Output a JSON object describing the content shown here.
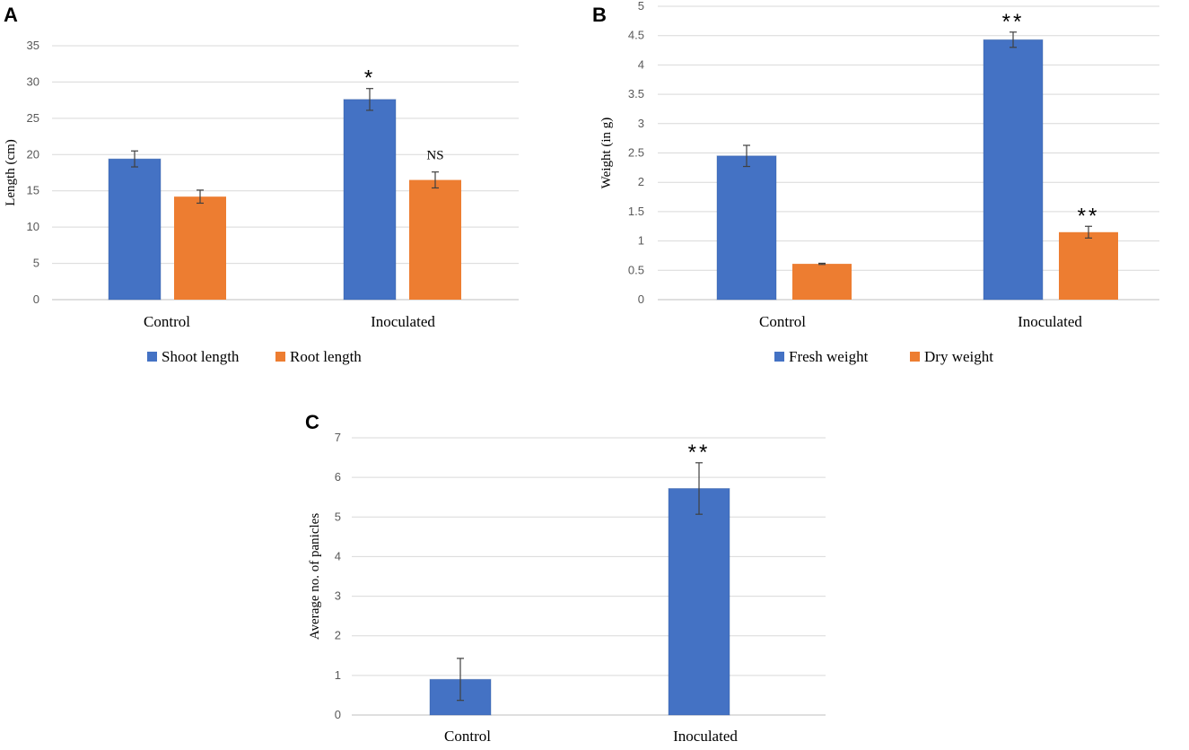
{
  "chart_data": [
    {
      "panel": "A",
      "type": "bar",
      "categories": [
        "Control",
        "Inoculated"
      ],
      "series": [
        {
          "name": "Shoot length",
          "color": "#4472C4",
          "values": [
            19.4,
            27.6
          ],
          "errors": [
            1.1,
            1.5
          ]
        },
        {
          "name": "Root length",
          "color": "#ED7D31",
          "values": [
            14.2,
            16.5
          ],
          "errors": [
            0.9,
            1.1
          ]
        }
      ],
      "annotations": [
        {
          "category": 1,
          "series": 0,
          "text": "*"
        },
        {
          "category": 1,
          "series": 1,
          "text": "NS"
        }
      ],
      "xlabel": "",
      "ylabel": "Length (cm)",
      "ylim": [
        0,
        35
      ],
      "yticks": [
        "0",
        "5",
        "10",
        "15",
        "20",
        "25",
        "30",
        "35"
      ],
      "grid": true,
      "legend": "bottom"
    },
    {
      "panel": "B",
      "type": "bar",
      "categories": [
        "Control",
        "Inoculated"
      ],
      "series": [
        {
          "name": "Fresh weight",
          "color": "#4472C4",
          "values": [
            2.45,
            4.43
          ],
          "errors": [
            0.18,
            0.13
          ]
        },
        {
          "name": "Dry weight",
          "color": "#ED7D31",
          "values": [
            0.61,
            1.15
          ],
          "errors": [
            0.01,
            0.1
          ]
        }
      ],
      "annotations": [
        {
          "category": 1,
          "series": 0,
          "text": "**"
        },
        {
          "category": 1,
          "series": 1,
          "text": "**"
        }
      ],
      "xlabel": "",
      "ylabel": "Weight (in g)",
      "ylim": [
        0,
        5
      ],
      "yticks": [
        "0",
        "0.5",
        "1",
        "1.5",
        "2",
        "2.5",
        "3",
        "3.5",
        "4",
        "4.5",
        "5"
      ],
      "grid": true,
      "legend": "bottom"
    },
    {
      "panel": "C",
      "type": "bar",
      "categories": [
        "Control",
        "Inoculated"
      ],
      "series": [
        {
          "name": "Average no. of panicles",
          "color": "#4472C4",
          "values": [
            0.9,
            5.72
          ],
          "errors": [
            0.53,
            0.65
          ]
        }
      ],
      "annotations": [
        {
          "category": 1,
          "series": 0,
          "text": "**"
        }
      ],
      "xlabel": "",
      "ylabel": "Average no. of panicles",
      "ylim": [
        0,
        7
      ],
      "yticks": [
        "0",
        "1",
        "2",
        "3",
        "4",
        "5",
        "6",
        "7"
      ],
      "grid": true,
      "legend": "none"
    }
  ]
}
